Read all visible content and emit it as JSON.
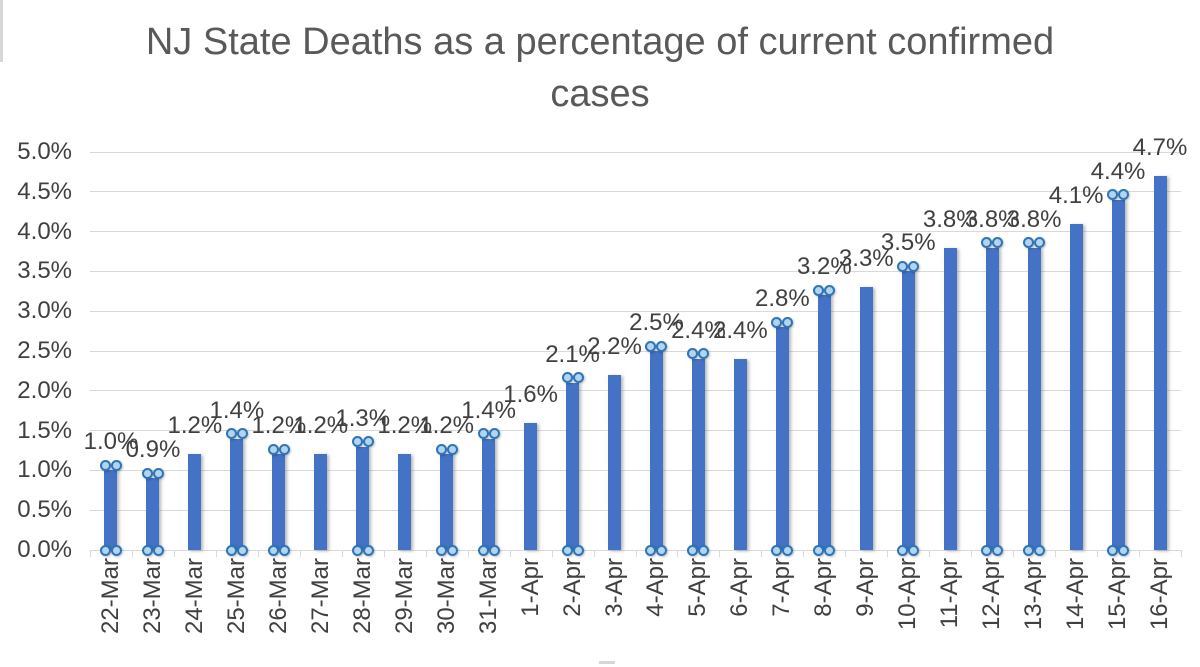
{
  "title": {
    "full": "NJ State Deaths as a percentage of current confirmed cases",
    "line1": "NJ State Deaths as a percentage of current confirmed",
    "line2": "cases",
    "color": "#595959"
  },
  "chart_data": {
    "type": "bar",
    "title": "NJ State Deaths as a percentage of current confirmed cases",
    "xlabel": "",
    "ylabel": "",
    "categories": [
      "22-Mar",
      "23-Mar",
      "24-Mar",
      "25-Mar",
      "26-Mar",
      "27-Mar",
      "28-Mar",
      "29-Mar",
      "30-Mar",
      "31-Mar",
      "1-Apr",
      "2-Apr",
      "3-Apr",
      "4-Apr",
      "5-Apr",
      "6-Apr",
      "7-Apr",
      "8-Apr",
      "9-Apr",
      "10-Apr",
      "11-Apr",
      "12-Apr",
      "13-Apr",
      "14-Apr",
      "15-Apr",
      "16-Apr"
    ],
    "values": [
      1.0,
      0.9,
      1.2,
      1.4,
      1.2,
      1.2,
      1.3,
      1.2,
      1.2,
      1.4,
      1.6,
      2.1,
      2.2,
      2.5,
      2.4,
      2.4,
      2.8,
      3.2,
      3.3,
      3.5,
      3.8,
      3.8,
      3.8,
      4.1,
      4.4,
      4.7
    ],
    "data_labels": [
      "1.0%",
      "0.9%",
      "1.2%",
      "1.4%",
      "1.2%",
      "1.2%",
      "1.3%",
      "1.2%",
      "1.2%",
      "1.4%",
      "1.6%",
      "2.1%",
      "2.2%",
      "2.5%",
      "2.4%",
      "2.4%",
      "2.8%",
      "3.2%",
      "3.3%",
      "3.5%",
      "3.8%",
      "3.8%",
      "3.8%",
      "4.1%",
      "4.4%",
      "4.7%"
    ],
    "point_markers": [
      true,
      true,
      false,
      true,
      true,
      false,
      true,
      false,
      true,
      true,
      false,
      true,
      false,
      true,
      true,
      false,
      true,
      true,
      false,
      true,
      false,
      true,
      true,
      false,
      true,
      false
    ],
    "ylim": [
      0,
      5
    ],
    "ytick_step": 0.5,
    "ytick_labels": [
      "0.0%",
      "0.5%",
      "1.0%",
      "1.5%",
      "2.0%",
      "2.5%",
      "3.0%",
      "3.5%",
      "4.0%",
      "4.5%",
      "5.0%"
    ],
    "grid": true,
    "legend": "none",
    "colors": {
      "bar": "#4472C4",
      "marker_fill": "#B3D4F0",
      "marker_stroke": "#2E75B6",
      "gridline": "#D9D9D9",
      "axis_text": "#404040",
      "title_text": "#595959"
    }
  }
}
